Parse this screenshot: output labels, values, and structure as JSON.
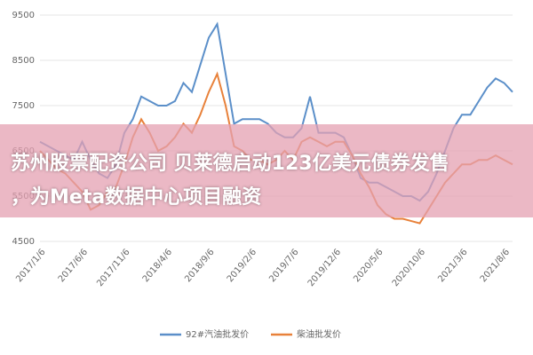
{
  "chart_data": {
    "type": "line",
    "categories": [
      "2017/1/6",
      null,
      null,
      null,
      null,
      "2017/6/6",
      null,
      null,
      null,
      null,
      "2017/11/6",
      null,
      null,
      null,
      null,
      "2018/4/6",
      null,
      null,
      null,
      null,
      "2018/9/6",
      null,
      null,
      null,
      null,
      "2019/2/6",
      null,
      null,
      null,
      null,
      "2019/7/6",
      null,
      null,
      null,
      null,
      "2019/12/6",
      null,
      null,
      null,
      null,
      "2020/5/6",
      null,
      null,
      null,
      null,
      "2020/10/6",
      null,
      null,
      null,
      null,
      "2021/3/6",
      null,
      null,
      null,
      null,
      "2021/8/6",
      null
    ],
    "series": [
      {
        "name": "92#汽油批发价",
        "color": "#5b8fc9",
        "values": [
          6700,
          6600,
          6500,
          6400,
          6300,
          6700,
          6300,
          6000,
          5900,
          6200,
          6900,
          7200,
          7700,
          7600,
          7500,
          7500,
          7600,
          8000,
          7800,
          8400,
          9000,
          9300,
          8200,
          7100,
          7200,
          7200,
          7200,
          7100,
          6900,
          6800,
          6800,
          7000,
          7700,
          6900,
          6900,
          6900,
          6800,
          6400,
          5900,
          5800,
          5800,
          5700,
          5600,
          5500,
          5500,
          5400,
          5600,
          6000,
          6500,
          7000,
          7300,
          7300,
          7600,
          7900,
          8100,
          8000,
          7800
        ]
      },
      {
        "name": "柴油批发价",
        "color": "#e8813a",
        "values": [
          6500,
          6300,
          6100,
          6000,
          5800,
          5600,
          5200,
          5300,
          5600,
          5700,
          6200,
          6800,
          7200,
          6900,
          6500,
          6600,
          6800,
          7100,
          6900,
          7300,
          7800,
          8200,
          7500,
          6600,
          6500,
          6300,
          6300,
          6200,
          6300,
          6500,
          6300,
          6700,
          6800,
          6700,
          6600,
          6700,
          6700,
          6400,
          6000,
          5700,
          5300,
          5100,
          5000,
          5000,
          4950,
          4900,
          5200,
          5500,
          5800,
          6000,
          6200,
          6200,
          6300,
          6300,
          6400,
          6300,
          6200
        ]
      }
    ],
    "ylim": [
      4500,
      9500
    ],
    "yticks": [
      4500,
      5500,
      6500,
      7500,
      8500,
      9500
    ],
    "grid": true
  },
  "overlay": {
    "lines": [
      "苏州股票配资公司 贝莱德启动123亿美元债券发售",
      "，为Meta数据中心项目融资"
    ]
  }
}
